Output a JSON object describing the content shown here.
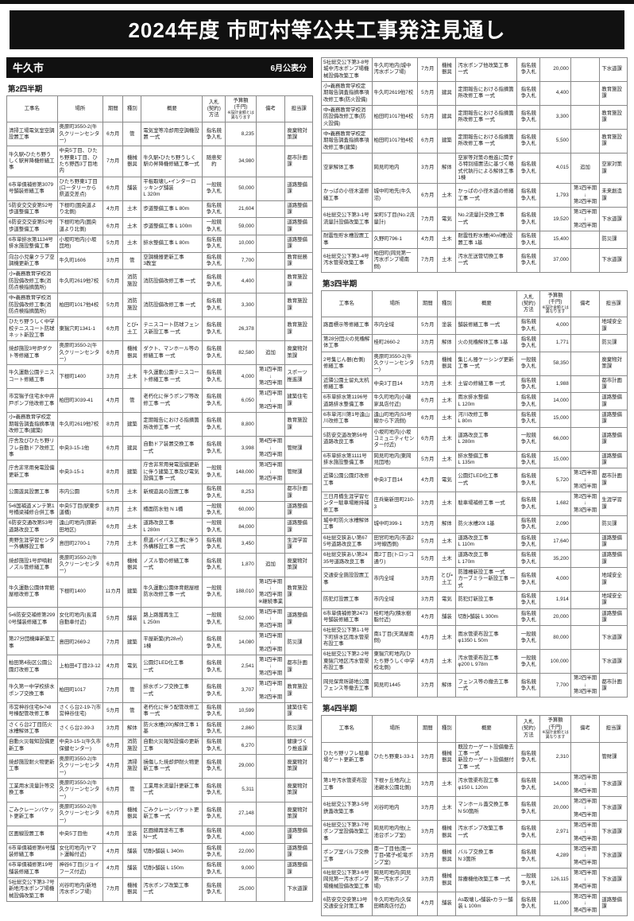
{
  "page": {
    "title": "2024年度 市町村等公共工事発注見通し",
    "municipality": "牛久市",
    "publication": "6月公表分"
  },
  "columns": [
    "工事名",
    "場所",
    "期間",
    "種別",
    "概要",
    "入札\n(契約)\n方法",
    "予算額\n(千円)\n※設計金額とは異なります",
    "備考",
    "担当課"
  ],
  "sections": {
    "q2": {
      "label": "第2四半期",
      "rows": [
        [
          "清掃工場電気室空調設置工事",
          "奥原町3550-2(牛久クリーンセンター)",
          "6カ月",
          "管",
          "電気室等冷却用空調機設置 一式",
          "指名競争入札",
          "8,235",
          "",
          "廃棄物対策課"
        ],
        [
          "牛久駅・ひたち野うしく駅昇降機修繕工事",
          "中央5丁目、ひたち野東1丁目、ひたち野西3丁目地内",
          "7カ月",
          "機械器具",
          "牛久駅・ひたち野うしく駅の昇降機修繕工事一式",
          "随意契約",
          "34,980",
          "",
          "都市計画課"
        ],
        [
          "6市単債補修第3079号舗装修繕工事",
          "ひたち野東1丁目(ロータリーから県道交差点)",
          "6カ月",
          "舗装",
          "平板取壊し・インターロッキング舗装\nL 320m",
          "一般競争入札",
          "50,000",
          "",
          "道路整備課"
        ],
        [
          "5防安交交安第52号歩道整備工事",
          "下根町(圏央道より北側)",
          "4カ月",
          "土木",
          "歩道整備工事 L 80m",
          "指名競争入札",
          "21,604",
          "",
          "道路整備課"
        ],
        [
          "6防安交交安第52号歩道整備工事",
          "下根町地内(圏央道より北側)",
          "6カ月",
          "土木",
          "歩道整備工事 L 100m",
          "一般競争入札",
          "59,000",
          "",
          "道路整備課"
        ],
        [
          "6市単排水第1134号排水施設整備工事",
          "小坂町地内(小坂団地)",
          "5カ月",
          "土木",
          "排水整備工事 L 80m",
          "指名競争入札",
          "10,000",
          "",
          "道路整備課"
        ],
        [
          "向台小児童クラブ空調機更新工事",
          "牛久町1606",
          "3カ月",
          "管",
          "空調機器更新工事\n3教室",
          "指名競争入札",
          "7,700",
          "",
          "教育総務課"
        ],
        [
          "小・義務教育学校消防設備改修工事(消防点検指摘箇所)",
          "牛久町2619他7校",
          "5カ月",
          "消防施設",
          "消防設備改修工事 一式",
          "指名競争入札",
          "4,400",
          "",
          "教育施設課"
        ],
        [
          "中・義務教育学校消防設備改修工事(消防点検指摘箇所)",
          "柏田町1017他4校",
          "5カ月",
          "消防施設",
          "消防設備改修工事 一式",
          "指名競争入札",
          "3,300",
          "",
          "教育施設課"
        ],
        [
          "ひたち野うしく中学校テニスコート防球ネット新設工事",
          "東猯穴町1341-1",
          "6カ月",
          "とび・土工",
          "テニスコート防球フェンス新設工事 一式",
          "指名競争入札",
          "26,378",
          "",
          "教育施設課"
        ],
        [
          "焼却施設3号炉ダクト等修繕工事",
          "奥原町3550-2(牛久クリーンセンター)",
          "6カ月",
          "機械器具",
          "ダクト、マンホール等の修繕工事 一式",
          "指名競争入札",
          "82,580",
          "追加",
          "廃棄物対策課"
        ],
        [
          "牛久運動公園テニスコート修繕工事",
          "下根町1400",
          "3カ月",
          "土木",
          "牛久運動公園テニスコート修繕工事 一式",
          "指名競争入札",
          "4,000",
          "第1四半期\n↓\n第2四半期",
          "スポーツ推進課"
        ],
        [
          "市営猯子住宅水中井戸ポンプ他改修工事",
          "柏田町3039-41",
          "4カ月",
          "管",
          "老朽化に伴うポンプ等改修工事 一式",
          "指名競争入札",
          "6,050",
          "第1四半期\n↓\n第2四半期",
          "建築住宅課"
        ],
        [
          "小・義務教育学校定期報告調査指摘事項改修工事(建築)",
          "牛久町2619他7校",
          "8カ月",
          "建築",
          "定期報告における指摘箇所改修工事 一式",
          "指名競争入札",
          "8,800",
          "",
          "教育施設課"
        ],
        [
          "庁舎及びひたち野リフレ自動ドア改修工事",
          "中央3-15-1他",
          "6カ月",
          "建具",
          "自動ドア装置交換工事\n一式",
          "指名競争入札",
          "3,998",
          "第4四半期\n↓\n第2四半期",
          "管財課"
        ],
        [
          "庁舎非常用発電設備更新工事",
          "中央3-15-1",
          "8カ月",
          "建築",
          "庁舎非常用発電設備更新に伴う建築工事及び電気設備工事 一式",
          "一般競争入札",
          "148,000",
          "第3四半期\n↓\n第2四半期",
          "管財課"
        ],
        [
          "公園遊具設置工事",
          "市内公園",
          "5カ月",
          "土木",
          "新規遊具の設置工事",
          "指名競争入札",
          "8,253",
          "",
          "都市計画課"
        ],
        [
          "5・6国補道メンテ第1号橋梁補修合併工事",
          "中央5丁目(駅東歩道橋)",
          "8カ月",
          "土木",
          "橋面防水他 N 1橋",
          "一般競争入札",
          "60,000",
          "",
          "道路整備課"
        ],
        [
          "6防安交通改第53号道路改良工事",
          "遠山町地内(原新田地区)",
          "6カ月",
          "土木",
          "道路改良工事\nL 280m",
          "一般競争入札",
          "84,000",
          "",
          "道路整備課"
        ],
        [
          "奥野生涯学習センター外構移設工事",
          "島田町2700-1",
          "7カ月",
          "土木",
          "県道バイパス工事に伴う外構移設工事 一式",
          "指名競争入札",
          "3,450",
          "",
          "生涯学習課"
        ],
        [
          "焼却施設1号炉噴射ノズル管修繕工事",
          "奥原町3550-2(牛久クリーンセンター)",
          "6カ月",
          "機械器具",
          "ノズル管の修繕工事\n一式",
          "指名競争入札",
          "1,870",
          "追加",
          "廃棄物対策課"
        ],
        [
          "牛久運動公園体育館屋根改修工事",
          "下根町1400",
          "11カ月",
          "建築",
          "牛久運動公園体育館屋根防水改修工事 一式",
          "一般競争入札",
          "188,010",
          "第1四半期\n↓\n第2四半期\n※継続事業",
          "教育施設課"
        ],
        [
          "5・6防安交補修第2990号舗装修繕工事",
          "女化町地内(長浦自動車付近)",
          "5カ月",
          "舗装",
          "路上路盤再生工\nL 250m",
          "一般競争入札",
          "52,000",
          "第1四半期\n↓\n第2四半期",
          "道路整備課"
        ],
        [
          "第27分団機庫新築工事",
          "島田町2669-2",
          "7カ月",
          "建築",
          "平屋新築(約28㎡)\n1棟",
          "指名競争入札",
          "14,080",
          "第1四半期\n↓\n第2四半期",
          "防災課"
        ],
        [
          "柏田第4街区公園公園灯改修工事",
          "上柏田4丁目23-12",
          "4カ月",
          "電気",
          "公園灯LED化工事\n一式",
          "指名競争入札",
          "2,541",
          "第1四半期\n↓\n第2四半期",
          "都市計画課"
        ],
        [
          "牛久第一中学校排水ポンプ交換工事",
          "柏田町1017",
          "7カ月",
          "管",
          "排水ポンプ交換工事\n一式",
          "指名競争入札",
          "3,707",
          "第1四半期\n↓\n第2四半期",
          "教育施設課"
        ],
        [
          "市営神谷住宅6・7・8号棟配管改修工事",
          "さくら台2-19-7(市営神谷住宅)",
          "5カ月",
          "管",
          "老朽化に伴う配管改修工事 一式",
          "指名競争入札",
          "10,599",
          "",
          "建築住宅課"
        ],
        [
          "さくら台2丁目防火水槽解体工事",
          "さくら台2-39-3",
          "3カ月",
          "解体",
          "防火水槽(20t)解体工事 1基",
          "指名競争入札",
          "2,860",
          "",
          "防災課"
        ],
        [
          "自動火災報知設備更新工事",
          "中央3-15-1(牛久市保健センター)",
          "6カ月",
          "消防施設",
          "自動火災報知設備の更新工事",
          "指名競争入札",
          "6,270",
          "",
          "健康づくり推進課"
        ],
        [
          "焼却施設耐火物更新工事",
          "奥原町3550-2(牛久クリーンセンター)",
          "4カ月",
          "清掃施設",
          "損傷した焼却炉耐火物更新工事 一式",
          "指名競争入札",
          "29,000",
          "",
          "廃棄物対策課"
        ],
        [
          "工業用水流量計等交換工事",
          "奥原町3550-2(牛久クリーンセンター)",
          "6カ月",
          "管",
          "工業用水流量計更新工事 一式",
          "指名競争入札",
          "5,311",
          "",
          "廃棄物対策課"
        ],
        [
          "ごみクレーンバケット更新工事",
          "奥原町3550-2(牛久クリーンセンター)",
          "6カ月",
          "機械器具",
          "ごみクレーンバケット更新工事 一式",
          "指名競争入札",
          "27,148",
          "",
          "廃棄物対策課"
        ],
        [
          "区画線設置工事",
          "中央5丁目他",
          "4カ月",
          "塗装",
          "区画線再塗布工事\nN一式",
          "指名競争入札",
          "4,000",
          "",
          "道路整備課"
        ],
        [
          "6市単債補修第6号舗装修繕工事",
          "女化町地内(ヤマト運輸付近)",
          "4カ月",
          "舗装",
          "切削・舗装 L 340m",
          "指名競争入札",
          "22,000",
          "",
          "道路整備課"
        ],
        [
          "6市単債補修第19号舗装修繕工事",
          "神谷6丁目(ジョイフーズ付近)",
          "4カ月",
          "舗装",
          "切削・舗装 L 150m",
          "指名競争入札",
          "9,000",
          "",
          "道路整備課"
        ],
        [
          "5社総交公下第3-7号新地汚水ポンプ場機械設備改築工事",
          "刈谷町地内(新地汚水ポンプ場)",
          "7カ月",
          "機械器具",
          "汚水ポンプ改築工事\n一式",
          "指名競争入札",
          "25,000",
          "",
          "下水道課"
        ]
      ]
    },
    "q2_cont": {
      "rows": [
        [
          "5社総交公下第3-8号城中汚水ポンプ場機械設備改築工事",
          "牛久町地内(城中汚水ポンプ場)",
          "7カ月",
          "機械器具",
          "汚水ポンプ他改築工事\n一式",
          "指名競争入札",
          "20,000",
          "",
          "下水道課"
        ],
        [
          "小・義務教育学校定期報告調査指摘事項改修工事(防火設備)",
          "牛久町2619他7校",
          "5カ月",
          "建具",
          "定期報告における指摘箇所改修工事 一式",
          "指名競争入札",
          "4,400",
          "",
          "教育施設課"
        ],
        [
          "中・義務教育学校消防設備改修工事(防火設備)",
          "柏田町1017他4校",
          "5カ月",
          "建具",
          "定期報告における指摘箇所改修工事 一式",
          "指名競争入札",
          "3,300",
          "",
          "教育施設課"
        ],
        [
          "中・義務教育学校定期報告調査指摘事項改修工事(建築)",
          "柏田町1017他4校",
          "6カ月",
          "建築",
          "定期報告における指摘箇所改修工事 一式",
          "指名競争入札",
          "5,500",
          "",
          "教育施設課"
        ],
        [
          "空家解体工事",
          "岡見町地内",
          "3カ月",
          "解体",
          "空家等対策の推進に関する特別措置法に基づく略式代執行による解体工事\n1棟",
          "指名競争入札",
          "4,015",
          "追加",
          "空家対策課"
        ],
        [
          "かっぱの小径木道修繕工事",
          "城中町地先(牛久沼)",
          "6カ月",
          "土木",
          "かっぱの小径木道の修繕工事 一式",
          "指名競争入札",
          "1,793",
          "第1四半期\n↓\n第2四半期",
          "未来創造課"
        ],
        [
          "6社総交公下第3-1号流量計設備改築工事",
          "栄町5丁目(No.2流量計)",
          "7カ月",
          "電気",
          "No.2流量計交換工事\n一式",
          "指名競争入札",
          "19,520",
          "第1四半期\n↓\n第2四半期",
          "下水道課"
        ],
        [
          "耐震性貯水槽設置工事",
          "久野町796-1",
          "4カ月",
          "土木",
          "耐震性貯水槽(40㎥槽)設置工事 1基",
          "指名競争入札",
          "15,400",
          "",
          "防災課"
        ],
        [
          "6社総交公下第3-4号汚水管渠改築工事",
          "柏田町(岡見第一汚水ポンプ場南側)",
          "7カ月",
          "土木",
          "汚水圧送管切換工事\n一式",
          "指名競争入札",
          "37,000",
          "",
          "下水道課"
        ]
      ]
    },
    "q3": {
      "label": "第3四半期",
      "rows": [
        [
          "路面標示等修繕工事",
          "市内全域",
          "5カ月",
          "塗装",
          "舗装修繕工事 一式",
          "指名競争入札",
          "4,000",
          "",
          "地域安全課"
        ],
        [
          "第28分団火の見櫓解体工事",
          "桂町2660-2",
          "3カ月",
          "解体",
          "火の見櫓解体工事 1基",
          "指名競争入札",
          "1,771",
          "",
          "防災課"
        ],
        [
          "2号集じん器(右側)修繕工事",
          "奥原町3550-2(牛久クリーンセンター)",
          "5カ月",
          "機械器具",
          "集じん器ケーシング更新工事 一式",
          "一般競争入札",
          "58,350",
          "",
          "廃棄物対策課"
        ],
        [
          "近隣公園土留丸太杭修繕工事",
          "中央3丁目14",
          "3カ月",
          "土木",
          "土留の修繕工事 一式",
          "指名競争入札",
          "1,988",
          "",
          "都市計画課"
        ],
        [
          "6市単排水第1196号道路排水整備工事",
          "牛久町地内(小磯家具店付近)",
          "6カ月",
          "土木",
          "雨水排水整備\nL 120m",
          "指名競争入札",
          "14,000",
          "",
          "道路整備課"
        ],
        [
          "6市単河川第1号遠山川改修工事",
          "遠山町地内(53号線から下流側)",
          "6カ月",
          "土木",
          "河川改修工事\nL 80m",
          "指名競争入札",
          "15,000",
          "",
          "道路整備課"
        ],
        [
          "5防安交道改第56号道路改良工事",
          "小坂町地内(小坂コミュニティセンター付近)",
          "6カ月",
          "土木",
          "道路改良工事\nL 280m",
          "一般競争入札",
          "66,000",
          "",
          "道路整備課"
        ],
        [
          "6市単排水第1111号排水施設整備工事",
          "岡見町地内(東岡見団地)",
          "5カ月",
          "土木",
          "排水整備工事\nL 135m",
          "指名競争入札",
          "15,000",
          "",
          "道路整備課"
        ],
        [
          "近隣公園公園灯改修工事",
          "中央3丁目14",
          "4カ月",
          "電気",
          "公園灯LED化工事\n一式",
          "指名競争入札",
          "5,720",
          "第1四半期\n↓\n第3四半期",
          "都市計画課"
        ],
        [
          "三日月橋生涯学習センター駐車場維持補修工事",
          "庄兵衛新田町210-3",
          "3カ月",
          "土木",
          "駐車場補修工事 一式",
          "指名競争入札",
          "1,682",
          "第2四半期\n↓\n第3四半期",
          "生涯学習課"
        ],
        [
          "城中町防火水槽解体工事",
          "城中町399-1",
          "3カ月",
          "解体",
          "防火水槽20t 1基",
          "指名競争入札",
          "2,090",
          "",
          "防災課"
        ],
        [
          "6社総交狭あい第675号道路改良工事",
          "田宮町地内(市道23号線西側)",
          "5カ月",
          "土木",
          "道路改良工事\nL 110m",
          "指名競争入札",
          "17,640",
          "",
          "道路整備課"
        ],
        [
          "6社総交狭あい第2435号道路改良工事",
          "南2丁目(トロッコ通り)",
          "5カ月",
          "土木",
          "道路改良工事\nL 170m",
          "指名競争入札",
          "35,200",
          "",
          "道路整備課"
        ],
        [
          "交通安全施設設置工事",
          "市内全域",
          "3カ月",
          "とび・土工",
          "防護柵新設工事 一式\nカーブミラー新設工事 一式",
          "指名競争入札",
          "4,000",
          "",
          "地域安全課"
        ],
        [
          "防犯灯設置工事",
          "市内全域",
          "3カ月",
          "電気",
          "防犯灯新設工事",
          "指名競争入札",
          "1,914",
          "",
          "地域安全課"
        ],
        [
          "6市単債補修第2473号舗装修繕工事",
          "桂町地内(積水樹脂付近)",
          "4カ月",
          "舗装",
          "切削・舗装 L 300m",
          "指名競争入札",
          "20,000",
          "",
          "道路整備課"
        ],
        [
          "6社総交公下第1-1号下町排水区雨水管渠布設工事",
          "南1丁目(天満屋南側)",
          "4カ月",
          "土木",
          "雨水管渠布設工事\nφ1350 L 50m",
          "一般競争入札",
          "80,000",
          "",
          "下水道課"
        ],
        [
          "6社総交公下第2-2号東猯穴地区汚水管渠布設工事",
          "東猯穴町地内(ひたち野うしく中学校北側)",
          "4カ月",
          "土木",
          "汚水管渠布設工事\nφ200 L 978m",
          "一般競争入札",
          "100,000",
          "",
          "下水道課"
        ],
        [
          "岡見保育所跡地公園フェンス等撤去工事",
          "岡見町1445",
          "3カ月",
          "解体",
          "フェンス等の撤去工事\n一式",
          "指名競争入札",
          "7,700",
          "第2四半期\n↓\n第3四半期",
          "都市計画課"
        ]
      ]
    },
    "q4": {
      "label": "第4四半期",
      "rows": [
        [
          "ひたち野リフレ駐車場ゲート更新工事",
          "ひたち野東1-33-1",
          "3カ月",
          "機械器具",
          "既設カーゲート設備撤去工事 一式\n新設カーゲート設備据付工事 一式",
          "指名競争入札",
          "2,310",
          "",
          "管財課"
        ],
        [
          "第1号汚水管渠布設工事",
          "下根ヶ丘地内(上池親水公園北側)",
          "3カ月",
          "土木",
          "汚水管渠布設工事\nφ150 L 120m",
          "指名競争入札",
          "14,000",
          "第2四半期\n↓\n第4四半期",
          "下水道課"
        ],
        [
          "6社総交公下第3-5号鉄蓋改築工事",
          "刈谷町地内",
          "3カ月",
          "土木",
          "マンホール蓋交換工事\nN 50箇所",
          "指名競争入札",
          "20,000",
          "第2四半期\n↓\n第4四半期",
          "下水道課"
        ],
        [
          "6社総交公下第3-7号ポンプ室設備改築工事",
          "岡見町地内他(上池台ポンプ室)",
          "3カ月",
          "機械器具",
          "汚水ポンプ改築工事\n一式",
          "指名競争入札",
          "2,971",
          "第2四半期\n↓\n第4四半期",
          "下水道課"
        ],
        [
          "ポンプ室バルブ交換工事",
          "南一丁目他(南一丁目・猪子・蛇竜ポンプ室)",
          "3カ月",
          "機械器具",
          "バルブ交換工事\nN 3箇所",
          "指名競争入札",
          "4,289",
          "第2四半期\n↓\n第4四半期",
          "下水道課"
        ],
        [
          "6社総交公下第3-6号岡見第一汚水ポンプ場機械設備改築工事",
          "岡見町地内(岡見第一汚水ポンプ場)",
          "3カ月",
          "機械器具",
          "除塵機他改築工事 一式",
          "一般競争入札",
          "126,115",
          "第3四半期\n↓\n第4四半期",
          "下水道課"
        ],
        [
          "6防安交交安第13号交通安全対策工事",
          "牛久町地内(久保田精肉店付近)",
          "4カ月",
          "舗装",
          "As取壊し・舗装・カラー舗装 L 100m",
          "指名競争入札",
          "11,000",
          "第2四半期\n↓\n第4四半期",
          "道路整備課"
        ]
      ]
    }
  }
}
